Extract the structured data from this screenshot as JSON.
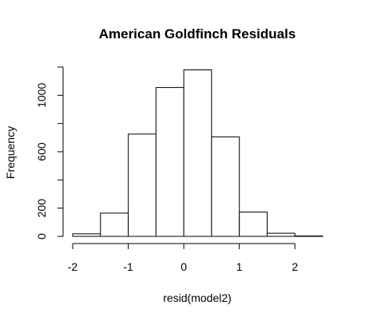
{
  "chart_data": {
    "type": "bar",
    "title": "American Goldfinch Residuals",
    "xlabel": "resid(model2)",
    "ylabel": "Frequency",
    "bin_edges": [
      -2,
      -1.5,
      -1,
      -0.5,
      0,
      0.5,
      1,
      1.5,
      2,
      2.5
    ],
    "values": [
      18,
      165,
      725,
      1055,
      1180,
      705,
      172,
      22,
      3
    ],
    "xlim": [
      -2,
      2.5
    ],
    "ylim": [
      0,
      1200
    ],
    "x_ticks": [
      -2,
      -1,
      0,
      1,
      2
    ],
    "x_tick_labels": [
      "-2",
      "-1",
      "0",
      "1",
      "2"
    ],
    "y_ticks": [
      0,
      200,
      400,
      600,
      800,
      1000,
      1200
    ],
    "y_tick_labels": [
      "0",
      "200",
      "",
      "600",
      "",
      "1000",
      ""
    ],
    "bar_fill": "#ffffff",
    "bar_stroke": "#000000",
    "grid": false,
    "legend": "none"
  }
}
